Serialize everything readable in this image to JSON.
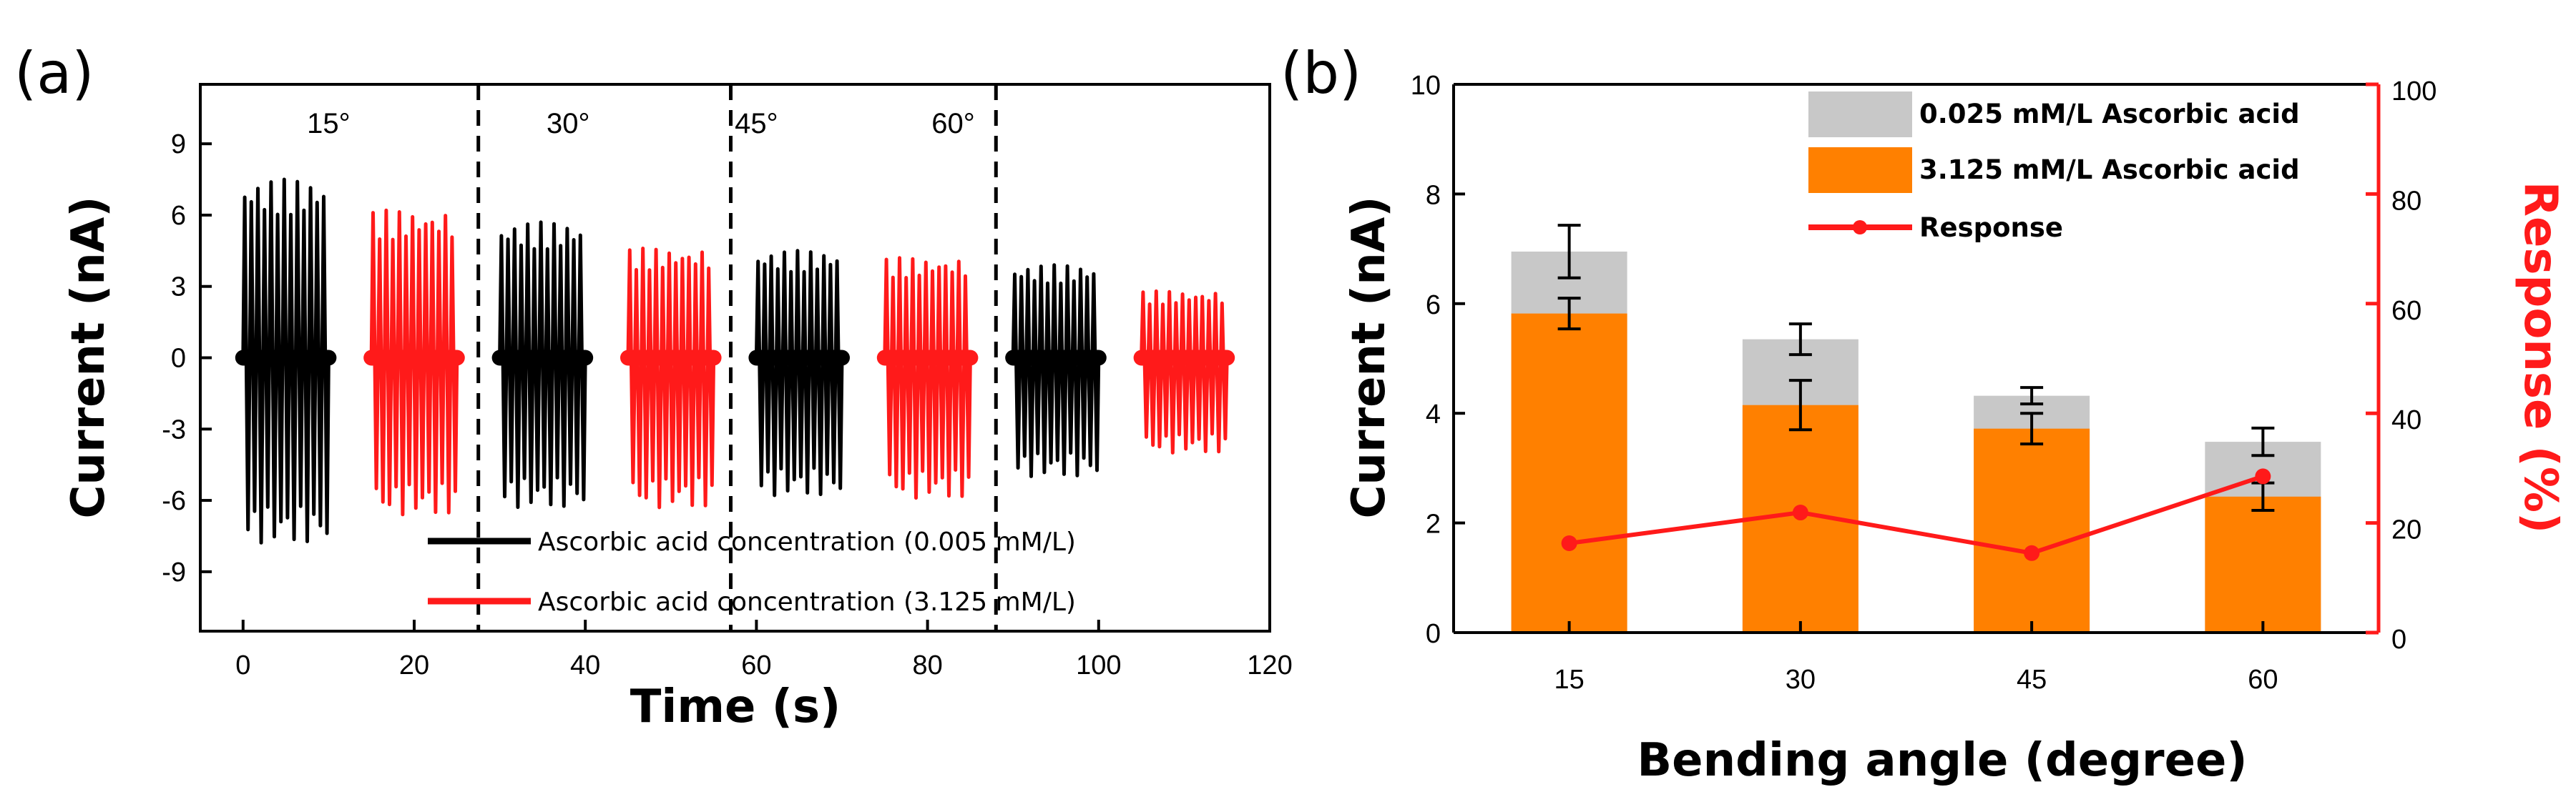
{
  "chart_data": [
    {
      "panel_label": "(a)",
      "type": "line",
      "xlabel": "Time (s)",
      "ylabel": "Current (nA)",
      "xlim": [
        -5,
        120
      ],
      "ylim": [
        -11.5,
        11.5
      ],
      "x_ticks": [
        0,
        20,
        40,
        60,
        80,
        100,
        120
      ],
      "x_tick_labels": [
        "0",
        "20",
        "40",
        "60",
        "80",
        "100",
        "120"
      ],
      "y_ticks": [
        -9,
        -6,
        -3,
        0,
        3,
        6,
        9
      ],
      "y_tick_labels": [
        "-9",
        "-6",
        "-3",
        "0",
        "3",
        "6",
        "9"
      ],
      "segment_labels": [
        "15°",
        "30°",
        "45°",
        "60°"
      ],
      "segment_label_x": [
        10,
        38,
        60,
        83
      ],
      "divider_x": [
        27.5,
        57,
        88
      ],
      "series": [
        {
          "name": "Ascorbic acid concentration (0.005 mM/L)",
          "color": "#000000",
          "bursts": [
            {
              "start": 0,
              "end": 10,
              "max": 7.5,
              "min": -7.8
            },
            {
              "start": 30,
              "end": 40,
              "max": 5.7,
              "min": -6.3
            },
            {
              "start": 60,
              "end": 70,
              "max": 4.5,
              "min": -5.8
            },
            {
              "start": 90,
              "end": 100,
              "max": 3.9,
              "min": -5.0
            }
          ]
        },
        {
          "name": "Ascorbic acid concentration (3.125 mM/L)",
          "color": "#ff1a1a",
          "bursts": [
            {
              "start": 15,
              "end": 25,
              "max": 6.2,
              "min": -6.6
            },
            {
              "start": 45,
              "end": 55,
              "max": 4.6,
              "min": -6.3
            },
            {
              "start": 75,
              "end": 85,
              "max": 4.2,
              "min": -5.9
            },
            {
              "start": 105,
              "end": 115,
              "max": 2.8,
              "min": -4.0
            }
          ]
        }
      ]
    },
    {
      "panel_label": "(b)",
      "type": "bar",
      "xlabel": "Bending angle (degree)",
      "ylabel": "Current (nA)",
      "ylabel_right": "Response (%)",
      "categories": [
        "15",
        "30",
        "45",
        "60"
      ],
      "ylim": [
        0,
        10
      ],
      "ylim_right": [
        0,
        100
      ],
      "y_ticks": [
        0,
        2,
        4,
        6,
        8,
        10
      ],
      "y_tick_labels": [
        "0",
        "2",
        "4",
        "6",
        "8",
        "10"
      ],
      "y_ticks_right": [
        0,
        20,
        40,
        60,
        80,
        100
      ],
      "y_tick_labels_right": [
        "0",
        "20",
        "40",
        "60",
        "80",
        "100"
      ],
      "series": [
        {
          "name": "0.025 mM/L Ascorbic acid",
          "color": "#c8c8c8",
          "values": [
            6.95,
            5.35,
            4.32,
            3.48
          ],
          "errors": [
            0.48,
            0.28,
            0.15,
            0.25
          ]
        },
        {
          "name": "3.125 mM/L Ascorbic acid",
          "color": "#ff8000",
          "values": [
            5.82,
            4.15,
            3.72,
            2.48
          ],
          "errors": [
            0.28,
            0.45,
            0.28,
            0.25
          ]
        },
        {
          "name": "Response",
          "color": "#ff1a1a",
          "axis": "right",
          "values": [
            16.3,
            21.9,
            14.5,
            28.5
          ]
        }
      ]
    }
  ]
}
